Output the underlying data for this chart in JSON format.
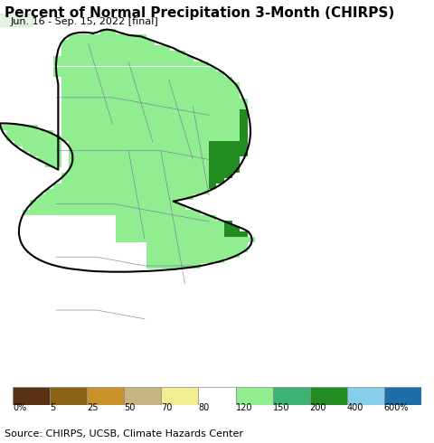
{
  "title": "Percent of Normal Precipitation 3-Month (CHIRPS)",
  "subtitle": "Jun. 16 - Sep. 15, 2022 [final]",
  "source": "Source: CHIRPS, UCSB, Climate Hazards Center",
  "ocean_color": "#C8F0F0",
  "legend_colors": [
    "#5B3213",
    "#8B6213",
    "#C8922A",
    "#C8B482",
    "#F0EE90",
    "#FFFFFF",
    "#90EE90",
    "#3CB371",
    "#228B22",
    "#87CEEB",
    "#1E6FA8"
  ],
  "legend_labels": [
    "0%",
    "5",
    "25",
    "50",
    "70",
    "80",
    "120",
    "150",
    "200",
    "400",
    "600%"
  ],
  "title_fontsize": 11,
  "subtitle_fontsize": 8,
  "source_fontsize": 8,
  "map_xlim": [
    79.5,
    82.2
  ],
  "map_ylim": [
    5.85,
    10.05
  ]
}
